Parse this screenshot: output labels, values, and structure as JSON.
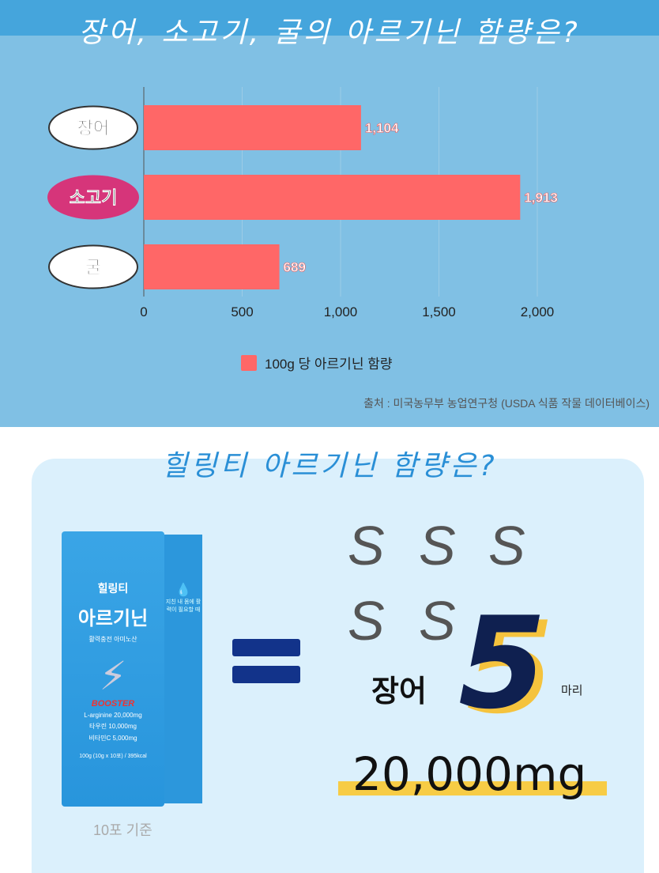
{
  "header": {
    "title": "장어, 소고기, 굴의 아르기닌 함량은?"
  },
  "chart_data": {
    "type": "bar",
    "orientation": "horizontal",
    "categories": [
      "장어",
      "소고기",
      "굴"
    ],
    "values": [
      1104,
      1913,
      689
    ],
    "data_labels": [
      "1,104",
      "1,913",
      "689"
    ],
    "xlim": [
      0,
      2000
    ],
    "xticks": [
      "0",
      "500",
      "1,000",
      "1,500",
      "2,000"
    ],
    "grid": true,
    "legend": {
      "entries": [
        "100g 당 아르기닌 함량"
      ],
      "placement": "bottom"
    },
    "bar_color": "#ff6767"
  },
  "source": "출처 : 미국농무부 농업연구청 (USDA 식품 작물 데이터베이스)",
  "section2": {
    "title": "힐링티 아르기닌 함량은?",
    "product": {
      "brand": "힐링티",
      "name": "아르기닌",
      "tagline": "활력충전 아미노산",
      "booster": "BOOSTER",
      "specs": [
        "L-arginine 20,000mg",
        "타우린 10,000mg",
        "비타민C 5,000mg"
      ],
      "net": "100g (10g x 10포) / 395kcal",
      "side": "지친 내 몸에 활력이 필요할 때"
    },
    "caption": "10포 기준",
    "eel_label": "장어",
    "count": "5",
    "unit": "마리",
    "amount": "20,000mg"
  }
}
